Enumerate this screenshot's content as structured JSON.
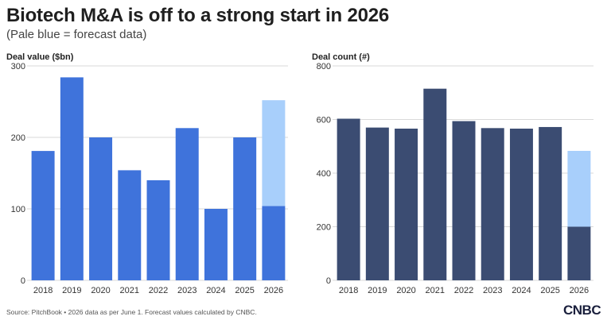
{
  "title": "Biotech M&A is off to a strong start in 2026",
  "subtitle": "(Pale blue = forecast data)",
  "source": "Source: PitchBook • 2026 data as per June 1. Forecast values calculated by CNBC.",
  "logo_text": "CNBC",
  "colors": {
    "left_bar": "#3f73db",
    "right_bar": "#3b4c72",
    "forecast": "#a8cffb",
    "grid": "#d9d9d9"
  },
  "chart_data": [
    {
      "type": "bar",
      "label": "Deal value ($bn)",
      "categories": [
        "2018",
        "2019",
        "2020",
        "2021",
        "2022",
        "2023",
        "2024",
        "2025",
        "2026"
      ],
      "series": [
        {
          "values": [
            181,
            284,
            200,
            154,
            140,
            213,
            100,
            200,
            104
          ]
        },
        {
          "values": [
            0,
            0,
            0,
            0,
            0,
            0,
            0,
            0,
            148
          ]
        }
      ],
      "stacked": true,
      "ylim": [
        0,
        300
      ],
      "yticks": [
        0,
        100,
        200,
        300
      ]
    },
    {
      "type": "bar",
      "label": "Deal count (#)",
      "categories": [
        "2018",
        "2019",
        "2020",
        "2021",
        "2022",
        "2023",
        "2024",
        "2025",
        "2026"
      ],
      "series": [
        {
          "values": [
            603,
            570,
            566,
            715,
            594,
            568,
            566,
            572,
            200
          ]
        },
        {
          "values": [
            0,
            0,
            0,
            0,
            0,
            0,
            0,
            0,
            283
          ]
        }
      ],
      "stacked": true,
      "ylim": [
        0,
        800
      ],
      "yticks": [
        0,
        200,
        400,
        600,
        800
      ]
    }
  ]
}
